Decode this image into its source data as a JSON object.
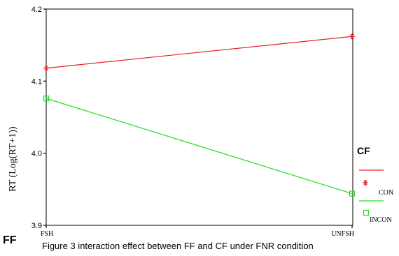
{
  "chart_data": {
    "type": "line",
    "title": "",
    "xlabel": "FF",
    "ylabel": "RT (Log(RT+1))",
    "categories": [
      "FSH",
      "UNFSH"
    ],
    "ylim": [
      3.9,
      4.2
    ],
    "yticks": [
      "3.9",
      "4.0",
      "4.1",
      "4.2"
    ],
    "grid": false,
    "legend_title": "CF",
    "legend_placement": "right",
    "series": [
      {
        "name": "CON",
        "values": [
          4.118,
          4.162
        ],
        "color": "#e8202a",
        "marker": "asterisk"
      },
      {
        "name": "INCON",
        "values": [
          4.076,
          3.944
        ],
        "color": "#22dd22",
        "marker": "square"
      }
    ]
  },
  "caption": "Figure 3 interaction effect between FF and CF under FNR condition"
}
